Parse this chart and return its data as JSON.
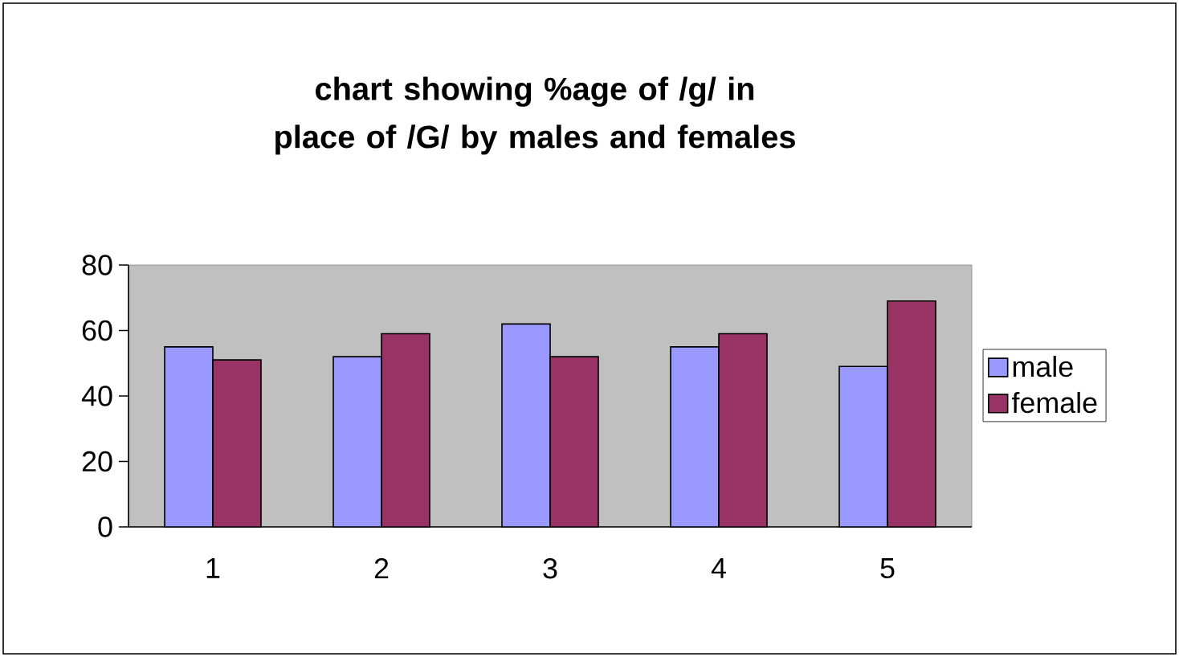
{
  "chart_data": {
    "type": "bar",
    "title": "chart showing %age of /g/ in place of /G/ by males and females",
    "categories": [
      "1",
      "2",
      "3",
      "4",
      "5"
    ],
    "series": [
      {
        "name": "male",
        "color": "#9999ff",
        "values": [
          55,
          52,
          62,
          55,
          49
        ]
      },
      {
        "name": "female",
        "color": "#993366",
        "values": [
          51,
          59,
          52,
          59,
          69
        ]
      }
    ],
    "ylim": [
      0,
      80
    ],
    "yticks": [
      0,
      20,
      40,
      60,
      80
    ],
    "legend": "right"
  }
}
